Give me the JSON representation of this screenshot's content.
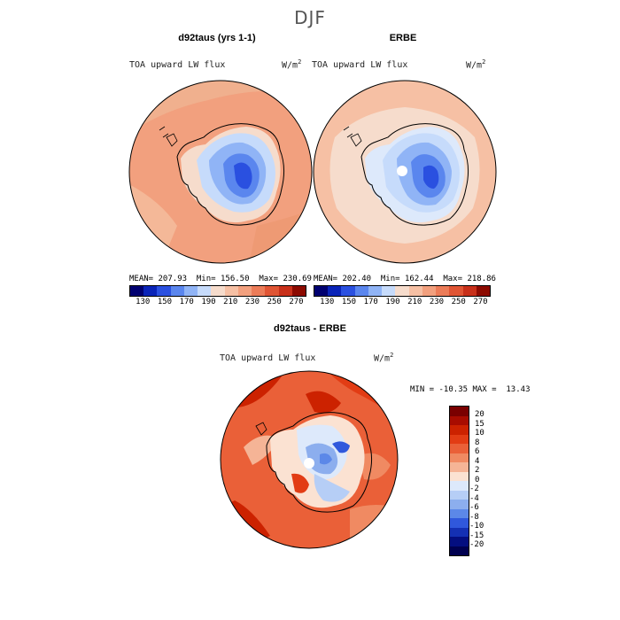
{
  "figure": {
    "title": "DJF",
    "units_base": "W/m",
    "units_exp": "2",
    "variable": "TOA upward LW flux"
  },
  "chart_data": [
    {
      "type": "heatmap",
      "title": "d92taus (yrs 1-1)",
      "subtitle": "TOA upward LW flux",
      "units": "W/m2",
      "stats": {
        "mean_label": "MEAN=",
        "mean": "207.93",
        "min_label": "Min=",
        "min": "156.50",
        "max_label": "Max=",
        "max": "230.69"
      },
      "colorbar_ticks": [
        "130",
        "150",
        "170",
        "190",
        "210",
        "230",
        "250",
        "270"
      ]
    },
    {
      "type": "heatmap",
      "title": "ERBE",
      "subtitle": "TOA upward LW flux",
      "units": "W/m2",
      "stats": {
        "mean_label": "MEAN=",
        "mean": "202.40",
        "min_label": "Min=",
        "min": "162.44",
        "max_label": "Max=",
        "max": "218.86"
      },
      "colorbar_ticks": [
        "130",
        "150",
        "170",
        "190",
        "210",
        "230",
        "250",
        "270"
      ]
    },
    {
      "type": "heatmap",
      "title": "d92taus - ERBE",
      "subtitle": "TOA upward LW flux",
      "units": "W/m2",
      "stats": {
        "min_label": "MIN =",
        "min": "-10.35",
        "max_label": "MAX =",
        "max": "13.43"
      },
      "colorbar_ticks": [
        "20",
        "15",
        "10",
        "8",
        "6",
        "4",
        "2",
        "0",
        "-2",
        "-4",
        "-6",
        "-8",
        "-10",
        "-15",
        "-20"
      ]
    }
  ],
  "colors": {
    "abs_scale": [
      "#000070",
      "#0a24b8",
      "#2a50e0",
      "#5a86ee",
      "#90b4f6",
      "#c6dbfb",
      "#f6dccc",
      "#f6c0a4",
      "#f2a07e",
      "#ec7c58",
      "#e05534",
      "#c8301a",
      "#8c0a00"
    ],
    "diff_scale": [
      "#7a0000",
      "#a80c00",
      "#cc2200",
      "#e23c14",
      "#ea6038",
      "#f08a62",
      "#f5b496",
      "#fbe2d2",
      "#dde9fb",
      "#b6cef6",
      "#8caeee",
      "#5c88e8",
      "#3058dc",
      "#1430b4",
      "#040e80",
      "#000050"
    ],
    "land_outline": "#000000"
  }
}
